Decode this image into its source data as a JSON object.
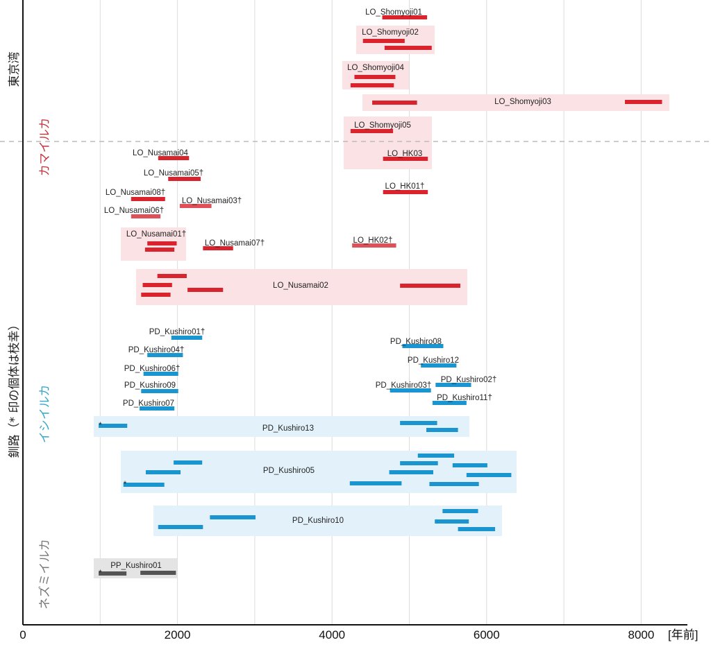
{
  "chart_data": {
    "type": "range-bar",
    "title": "",
    "xlabel": "[年前]",
    "ylabel": "",
    "xlim": [
      0,
      8600
    ],
    "x_ticks": [
      0,
      2000,
      4000,
      6000,
      8000
    ],
    "x_gridlines": [
      1000,
      2000,
      3000,
      4000,
      5000,
      6000,
      7000,
      8000
    ],
    "grid": true,
    "sites": [
      {
        "name": "東京湾"
      },
      {
        "name": "釧路（* 印の個体は枝幸）"
      }
    ],
    "species": [
      {
        "name": "カマイルカ",
        "color": "#d9232d"
      },
      {
        "name": "イシイルカ",
        "color": "#1a95d0"
      },
      {
        "name": "ネズミイルカ",
        "color": "#555555"
      }
    ],
    "colors": {
      "lo_bar": "#d9232d",
      "lo_bar_light": "#e05058",
      "lo_box": "#fbe3e5",
      "pd_bar": "#1a95d0",
      "pd_box": "#e3f2fa",
      "pp_bar": "#555555",
      "pp_box": "#e4e4e4",
      "label_site": "#222222",
      "label_lo": "#c8323c",
      "label_pd": "#33a6cc",
      "label_pp": "#777777"
    },
    "individuals": [
      {
        "name": "LO_Shomyoji01",
        "species": "LO",
        "site": "東京湾",
        "dagger": false,
        "boxed": false,
        "ranges": [
          [
            4650,
            5230
          ]
        ]
      },
      {
        "name": "LO_Shomyoji02",
        "species": "LO",
        "site": "東京湾",
        "dagger": false,
        "boxed": true,
        "label_pos": "top",
        "ranges": [
          [
            4400,
            4940
          ],
          [
            4680,
            5290
          ]
        ]
      },
      {
        "name": "LO_Shomyoji04",
        "species": "LO",
        "site": "東京湾",
        "dagger": false,
        "boxed": true,
        "label_pos": "top",
        "ranges": [
          [
            4290,
            4820
          ],
          [
            4240,
            4800
          ]
        ]
      },
      {
        "name": "LO_Shomyoji03",
        "species": "LO",
        "site": "東京湾",
        "dagger": false,
        "boxed": true,
        "label_pos": "center",
        "ranges": [
          [
            4520,
            5100
          ],
          [
            7790,
            8270
          ]
        ]
      },
      {
        "name": "LO_Shomyoji05",
        "species": "LO",
        "site": "東京湾",
        "dagger": false,
        "boxed": true,
        "label_pos": "top",
        "ranges": [
          [
            4240,
            4790
          ]
        ]
      },
      {
        "name": "LO_HK03",
        "species": "LO",
        "site": "釧路",
        "dagger": false,
        "boxed": true,
        "label_pos": "top",
        "ranges": [
          [
            4660,
            5240
          ]
        ]
      },
      {
        "name": "LO_Nusamai04",
        "species": "LO",
        "site": "釧路",
        "dagger": false,
        "boxed": false,
        "ranges": [
          [
            1750,
            2150
          ]
        ]
      },
      {
        "name": "LO_Nusamai05",
        "species": "LO",
        "site": "釧路",
        "dagger": true,
        "boxed": false,
        "ranges": [
          [
            1880,
            2300
          ]
        ]
      },
      {
        "name": "LO_Nusamai08",
        "species": "LO",
        "site": "釧路",
        "dagger": true,
        "boxed": false,
        "ranges": [
          [
            1400,
            1840
          ]
        ]
      },
      {
        "name": "LO_Nusamai06",
        "species": "LO",
        "site": "釧路",
        "dagger": true,
        "boxed": false,
        "light": true,
        "ranges": [
          [
            1400,
            1780
          ]
        ]
      },
      {
        "name": "LO_Nusamai03",
        "species": "LO",
        "site": "釧路",
        "dagger": true,
        "boxed": false,
        "light": true,
        "ranges": [
          [
            2030,
            2440
          ]
        ]
      },
      {
        "name": "LO_HK01",
        "species": "LO",
        "site": "釧路",
        "dagger": true,
        "boxed": false,
        "ranges": [
          [
            4660,
            5240
          ]
        ]
      },
      {
        "name": "LO_HK02",
        "species": "LO",
        "site": "釧路",
        "dagger": true,
        "boxed": false,
        "light": true,
        "ranges": [
          [
            4260,
            4830
          ]
        ]
      },
      {
        "name": "LO_Nusamai01",
        "species": "LO",
        "site": "釧路",
        "dagger": true,
        "boxed": true,
        "label_pos": "top",
        "ranges": [
          [
            1610,
            1990
          ],
          [
            1580,
            1960
          ]
        ]
      },
      {
        "name": "LO_Nusamai07",
        "species": "LO",
        "site": "釧路",
        "dagger": true,
        "boxed": false,
        "ranges": [
          [
            2330,
            2720
          ]
        ]
      },
      {
        "name": "LO_Nusamai02",
        "species": "LO",
        "site": "釧路",
        "dagger": false,
        "boxed": true,
        "label_pos": "center",
        "ranges": [
          [
            1740,
            2120
          ],
          [
            1550,
            1930
          ],
          [
            1530,
            1910
          ],
          [
            2130,
            2590
          ],
          [
            4880,
            5660
          ]
        ]
      },
      {
        "name": "PD_Kushiro01",
        "species": "PD",
        "site": "釧路",
        "dagger": true,
        "boxed": false,
        "ranges": [
          [
            1920,
            2320
          ]
        ]
      },
      {
        "name": "PD_Kushiro04",
        "species": "PD",
        "site": "釧路",
        "dagger": true,
        "boxed": false,
        "ranges": [
          [
            1610,
            2070
          ]
        ]
      },
      {
        "name": "PD_Kushiro06",
        "species": "PD",
        "site": "釧路",
        "dagger": true,
        "boxed": false,
        "ranges": [
          [
            1560,
            2010
          ]
        ]
      },
      {
        "name": "PD_Kushiro09",
        "species": "PD",
        "site": "釧路",
        "dagger": false,
        "boxed": false,
        "ranges": [
          [
            1530,
            2010
          ]
        ]
      },
      {
        "name": "PD_Kushiro07",
        "species": "PD",
        "site": "釧路",
        "dagger": false,
        "boxed": false,
        "ranges": [
          [
            1510,
            1960
          ]
        ]
      },
      {
        "name": "PD_Kushiro08",
        "species": "PD",
        "site": "釧路",
        "dagger": false,
        "boxed": false,
        "ranges": [
          [
            4910,
            5440
          ]
        ]
      },
      {
        "name": "PD_Kushiro12",
        "species": "PD",
        "site": "釧路",
        "dagger": false,
        "boxed": false,
        "ranges": [
          [
            5150,
            5610
          ]
        ]
      },
      {
        "name": "PD_Kushiro03",
        "species": "PD",
        "site": "釧路",
        "dagger": true,
        "boxed": false,
        "ranges": [
          [
            4750,
            5280
          ]
        ]
      },
      {
        "name": "PD_Kushiro02",
        "species": "PD",
        "site": "釧路",
        "dagger": true,
        "boxed": false,
        "ranges": [
          [
            5340,
            5800
          ]
        ]
      },
      {
        "name": "PD_Kushiro11",
        "species": "PD",
        "site": "釧路",
        "dagger": true,
        "boxed": false,
        "ranges": [
          [
            5300,
            5740
          ]
        ]
      },
      {
        "name": "PD_Kushiro13",
        "species": "PD",
        "site": "釧路",
        "dagger": false,
        "boxed": true,
        "label_pos": "center",
        "ranges": [
          [
            980,
            1350,
            "*"
          ],
          [
            4880,
            5360
          ],
          [
            5220,
            5630
          ]
        ]
      },
      {
        "name": "PD_Kushiro05",
        "species": "PD",
        "site": "釧路",
        "dagger": false,
        "boxed": true,
        "label_pos": "center",
        "ranges": [
          [
            1950,
            2320
          ],
          [
            1590,
            2040
          ],
          [
            1300,
            1830,
            "*"
          ],
          [
            5110,
            5580
          ],
          [
            4880,
            5370
          ],
          [
            4740,
            5310
          ],
          [
            5560,
            6010
          ],
          [
            5740,
            6320
          ],
          [
            4230,
            4900
          ],
          [
            5260,
            5900
          ]
        ]
      },
      {
        "name": "PD_Kushiro10",
        "species": "PD",
        "site": "釧路",
        "dagger": false,
        "boxed": true,
        "label_pos": "center",
        "ranges": [
          [
            2420,
            3010
          ],
          [
            1750,
            2330
          ],
          [
            5430,
            5890
          ],
          [
            5330,
            5770
          ],
          [
            5630,
            6110
          ]
        ]
      },
      {
        "name": "PP_Kushiro01",
        "species": "PP",
        "site": "釧路",
        "dagger": false,
        "boxed": true,
        "label_pos": "top",
        "ranges": [
          [
            980,
            1340,
            "*"
          ],
          [
            1520,
            1980
          ]
        ]
      }
    ]
  }
}
